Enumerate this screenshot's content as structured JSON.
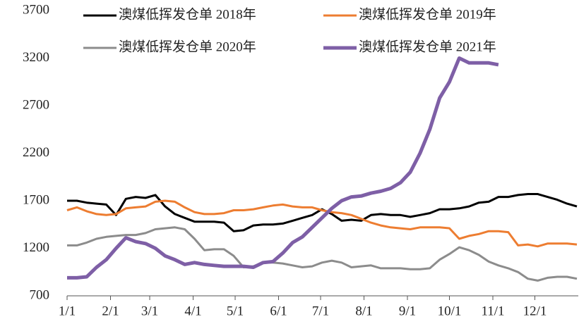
{
  "chart_data": {
    "type": "line",
    "x": [
      1,
      8,
      15,
      22,
      29,
      36,
      43,
      50,
      57,
      64,
      71,
      78,
      85,
      92,
      99,
      106,
      113,
      120,
      127,
      134,
      141,
      148,
      155,
      162,
      169,
      176,
      183,
      190,
      197,
      204,
      211,
      218,
      225,
      232,
      239,
      246,
      253,
      260,
      267,
      274,
      281,
      288,
      295,
      302,
      309,
      316,
      323,
      330,
      337,
      344,
      351,
      358,
      365
    ],
    "series": [
      {
        "name": "澳煤低挥发仓单 2018年",
        "color": "#000000",
        "width": 3,
        "values": [
          1700,
          1700,
          1680,
          1670,
          1660,
          1550,
          1720,
          1740,
          1730,
          1760,
          1640,
          1560,
          1520,
          1480,
          1480,
          1480,
          1470,
          1380,
          1390,
          1440,
          1450,
          1450,
          1460,
          1490,
          1520,
          1550,
          1610,
          1560,
          1490,
          1500,
          1490,
          1550,
          1560,
          1550,
          1550,
          1530,
          1550,
          1570,
          1610,
          1610,
          1620,
          1640,
          1680,
          1690,
          1740,
          1740,
          1760,
          1770,
          1770,
          1740,
          1710,
          1670,
          1640
        ]
      },
      {
        "name": "澳煤低挥发仓单 2019年",
        "color": "#ed7d31",
        "width": 3,
        "values": [
          1600,
          1630,
          1590,
          1560,
          1550,
          1560,
          1620,
          1630,
          1640,
          1690,
          1700,
          1690,
          1630,
          1580,
          1560,
          1560,
          1570,
          1600,
          1600,
          1610,
          1630,
          1650,
          1660,
          1640,
          1630,
          1630,
          1600,
          1580,
          1570,
          1550,
          1510,
          1470,
          1440,
          1420,
          1410,
          1400,
          1420,
          1420,
          1420,
          1410,
          1300,
          1330,
          1350,
          1380,
          1380,
          1370,
          1230,
          1240,
          1220,
          1250,
          1250,
          1250,
          1240
        ]
      },
      {
        "name": "澳煤低挥发仓单 2020年",
        "color": "#8c8c8c",
        "width": 3,
        "values": [
          1230,
          1230,
          1260,
          1300,
          1320,
          1330,
          1340,
          1340,
          1360,
          1400,
          1410,
          1420,
          1400,
          1300,
          1180,
          1190,
          1190,
          1120,
          1000,
          1010,
          1050,
          1050,
          1040,
          1020,
          1000,
          1010,
          1050,
          1070,
          1050,
          1000,
          1010,
          1020,
          990,
          990,
          990,
          980,
          980,
          990,
          1080,
          1140,
          1210,
          1180,
          1130,
          1060,
          1020,
          990,
          950,
          880,
          860,
          890,
          900,
          900,
          880
        ]
      },
      {
        "name": "澳煤低挥发仓单 2021年",
        "color": "#7e5fa6",
        "width": 5,
        "values": [
          890,
          890,
          900,
          1000,
          1080,
          1200,
          1310,
          1270,
          1250,
          1200,
          1120,
          1080,
          1030,
          1050,
          1030,
          1020,
          1010,
          1010,
          1010,
          1000,
          1050,
          1060,
          1150,
          1260,
          1320,
          1420,
          1520,
          1620,
          1700,
          1740,
          1750,
          1780,
          1800,
          1830,
          1890,
          2000,
          2200,
          2450,
          2780,
          2950,
          3200,
          3150,
          3150,
          3150,
          3130,
          null,
          null,
          null,
          null,
          null,
          null,
          null,
          null
        ]
      }
    ],
    "xlim": [
      1,
      366
    ],
    "xticks": [
      {
        "value": 1,
        "label": "1/1"
      },
      {
        "value": 32,
        "label": "2/1"
      },
      {
        "value": 60,
        "label": "3/1"
      },
      {
        "value": 91,
        "label": "4/1"
      },
      {
        "value": 121,
        "label": "5/1"
      },
      {
        "value": 152,
        "label": "6/1"
      },
      {
        "value": 182,
        "label": "7/1"
      },
      {
        "value": 213,
        "label": "8/1"
      },
      {
        "value": 244,
        "label": "9/1"
      },
      {
        "value": 274,
        "label": "10/1"
      },
      {
        "value": 305,
        "label": "11/1"
      },
      {
        "value": 335,
        "label": "12/1"
      }
    ],
    "ylim": [
      700,
      3700
    ],
    "yticks": [
      700,
      1200,
      1700,
      2200,
      2700,
      3200,
      3700
    ],
    "grid": false,
    "legend": "top-right"
  }
}
